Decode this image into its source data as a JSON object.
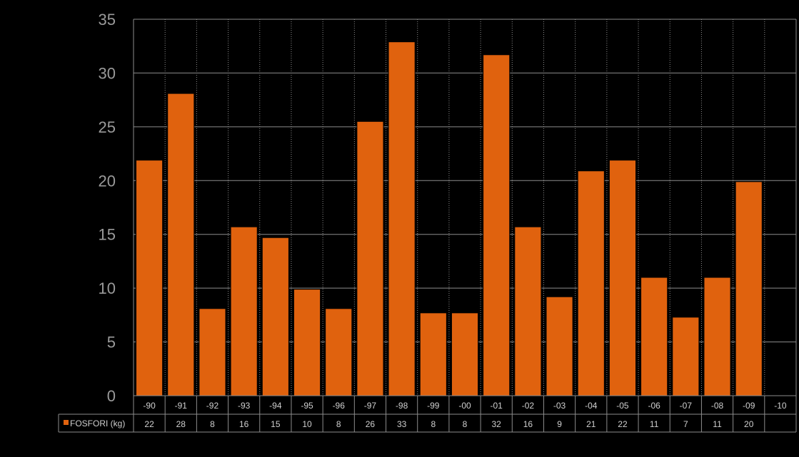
{
  "chart_data": {
    "type": "bar",
    "title": "",
    "xlabel": "",
    "ylabel": "",
    "ylim": [
      0,
      35
    ],
    "yticks": [
      0,
      5,
      10,
      15,
      20,
      25,
      30,
      35
    ],
    "grid": true,
    "categories": [
      "-90",
      "-91",
      "-92",
      "-93",
      "-94",
      "-95",
      "-96",
      "-97",
      "-98",
      "-99",
      "-00",
      "-01",
      "-02",
      "-03",
      "-04",
      "-05",
      "-06",
      "-07",
      "-08",
      "-09",
      "-10"
    ],
    "series": [
      {
        "name": "FOSFORI (kg)",
        "values": [
          21.9,
          28.1,
          8.1,
          15.7,
          14.7,
          9.9,
          8.1,
          25.5,
          32.9,
          7.7,
          7.7,
          31.7,
          15.7,
          9.2,
          20.9,
          21.9,
          11.0,
          7.3,
          11.0,
          19.9,
          null
        ],
        "table_labels": [
          "22",
          "28",
          "8",
          "16",
          "15",
          "10",
          "8",
          "26",
          "33",
          "8",
          "8",
          "32",
          "16",
          "9",
          "21",
          "22",
          "11",
          "7",
          "11",
          "20",
          ""
        ]
      }
    ],
    "legend": "data-table-left",
    "colors": {
      "bar": "#E0620E",
      "background": "#000000",
      "grid": "#8c8c8c",
      "text": "#cfcfcf"
    }
  }
}
